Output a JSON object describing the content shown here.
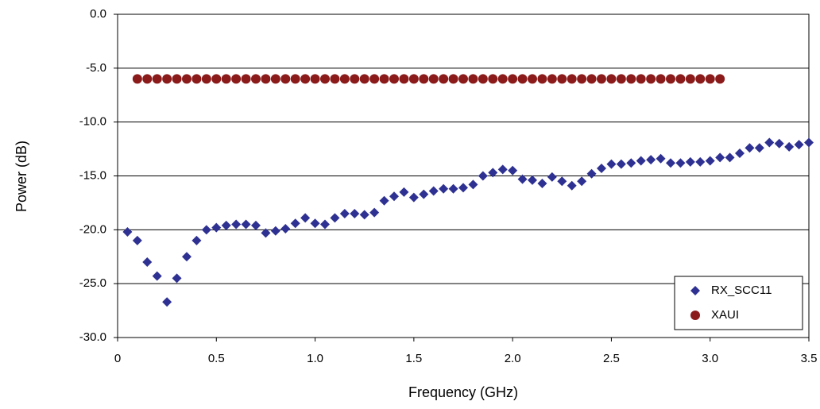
{
  "chart_data": {
    "type": "scatter",
    "xlabel": "Frequency (GHz)",
    "ylabel": "Power (dB)",
    "xlim": [
      0,
      3.5
    ],
    "ylim": [
      -30,
      0
    ],
    "xticks": [
      0,
      0.5,
      {
        "value": 1,
        "label": "1.0"
      },
      1.5,
      {
        "value": 2,
        "label": "2.0"
      },
      2.5,
      {
        "value": 3,
        "label": "3.0"
      },
      3.5
    ],
    "yticks": [
      {
        "value": 0,
        "label": "0.0"
      },
      {
        "value": -5,
        "label": "-5.0"
      },
      {
        "value": -10,
        "label": "-10.0"
      },
      {
        "value": -15,
        "label": "-15.0"
      },
      {
        "value": -20,
        "label": "-20.0"
      },
      {
        "value": -25,
        "label": "-25.0"
      },
      {
        "value": -30,
        "label": "-30.0"
      }
    ],
    "grid": true,
    "legend": "lower right",
    "series": [
      {
        "name": "RX_SCC11",
        "color": "#2e3192",
        "marker": "diamond",
        "x": [
          0.05,
          0.1,
          0.15,
          0.2,
          0.25,
          0.3,
          0.35,
          0.4,
          0.45,
          0.5,
          0.55,
          0.6,
          0.65,
          0.7,
          0.75,
          0.8,
          0.85,
          0.9,
          0.95,
          1.0,
          1.05,
          1.1,
          1.15,
          1.2,
          1.25,
          1.3,
          1.35,
          1.4,
          1.45,
          1.5,
          1.55,
          1.6,
          1.65,
          1.7,
          1.75,
          1.8,
          1.85,
          1.9,
          1.95,
          2.0,
          2.05,
          2.1,
          2.15,
          2.2,
          2.25,
          2.3,
          2.35,
          2.4,
          2.45,
          2.5,
          2.55,
          2.6,
          2.65,
          2.7,
          2.75,
          2.8,
          2.85,
          2.9,
          2.95,
          3.0,
          3.05,
          3.1,
          3.15,
          3.2,
          3.25,
          3.3,
          3.35,
          3.4,
          3.45,
          3.5
        ],
        "values": [
          -20.2,
          -21.0,
          -23.0,
          -24.3,
          -26.7,
          -24.5,
          -22.5,
          -21.0,
          -20.0,
          -19.8,
          -19.6,
          -19.5,
          -19.5,
          -19.6,
          -20.3,
          -20.1,
          -19.9,
          -19.4,
          -18.9,
          -19.4,
          -19.5,
          -18.9,
          -18.5,
          -18.5,
          -18.6,
          -18.4,
          -17.3,
          -16.9,
          -16.5,
          -17.0,
          -16.7,
          -16.4,
          -16.2,
          -16.2,
          -16.1,
          -15.8,
          -15.0,
          -14.7,
          -14.4,
          -14.5,
          -15.3,
          -15.4,
          -15.7,
          -15.1,
          -15.5,
          -15.9,
          -15.5,
          -14.8,
          -14.3,
          -13.9,
          -13.9,
          -13.8,
          -13.6,
          -13.5,
          -13.4,
          -13.8,
          -13.8,
          -13.7,
          -13.7,
          -13.6,
          -13.3,
          -13.3,
          -12.9,
          -12.4,
          -12.4,
          -11.9,
          -12.0,
          -12.3,
          -12.1,
          -11.9
        ]
      },
      {
        "name": "XAUI",
        "color": "#8b1a1a",
        "marker": "circle",
        "x": [
          0.1,
          0.15,
          0.2,
          0.25,
          0.3,
          0.35,
          0.4,
          0.45,
          0.5,
          0.55,
          0.6,
          0.65,
          0.7,
          0.75,
          0.8,
          0.85,
          0.9,
          0.95,
          1.0,
          1.05,
          1.1,
          1.15,
          1.2,
          1.25,
          1.3,
          1.35,
          1.4,
          1.45,
          1.5,
          1.55,
          1.6,
          1.65,
          1.7,
          1.75,
          1.8,
          1.85,
          1.9,
          1.95,
          2.0,
          2.05,
          2.1,
          2.15,
          2.2,
          2.25,
          2.3,
          2.35,
          2.4,
          2.45,
          2.5,
          2.55,
          2.6,
          2.65,
          2.7,
          2.75,
          2.8,
          2.85,
          2.9,
          2.95,
          3.0,
          3.05
        ],
        "values": [
          -6,
          -6,
          -6,
          -6,
          -6,
          -6,
          -6,
          -6,
          -6,
          -6,
          -6,
          -6,
          -6,
          -6,
          -6,
          -6,
          -6,
          -6,
          -6,
          -6,
          -6,
          -6,
          -6,
          -6,
          -6,
          -6,
          -6,
          -6,
          -6,
          -6,
          -6,
          -6,
          -6,
          -6,
          -6,
          -6,
          -6,
          -6,
          -6,
          -6,
          -6,
          -6,
          -6,
          -6,
          -6,
          -6,
          -6,
          -6,
          -6,
          -6,
          -6,
          -6,
          -6,
          -6,
          -6,
          -6,
          -6,
          -6,
          -6,
          -6
        ]
      }
    ]
  }
}
